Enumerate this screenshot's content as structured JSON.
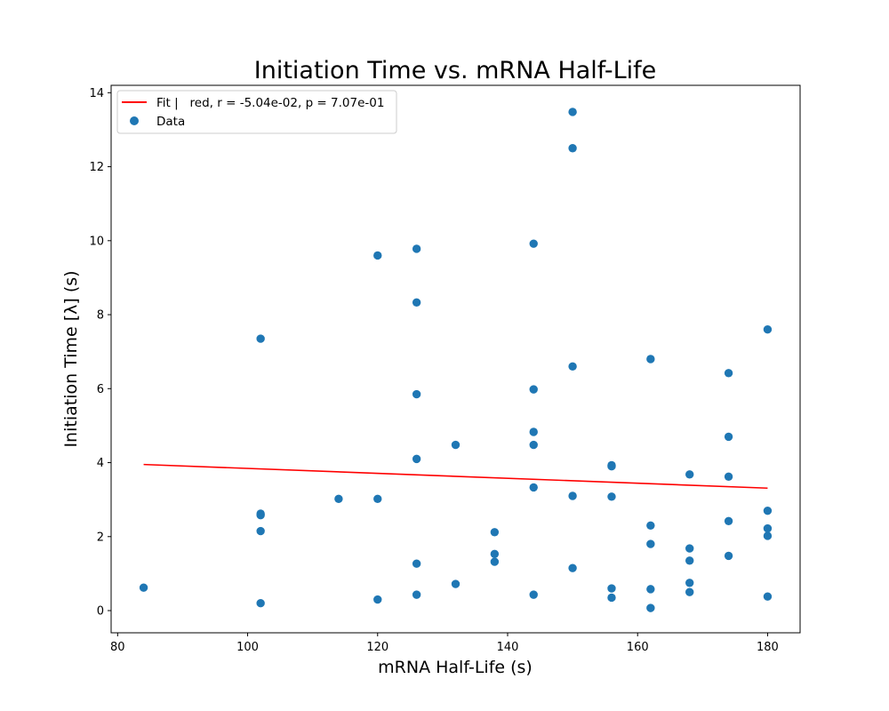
{
  "chart_data": {
    "type": "scatter",
    "title": "Initiation Time vs. mRNA Half-Life",
    "xlabel": "mRNA Half-Life (s)",
    "ylabel": "Initiation Time [λ] (s)",
    "xlim": [
      79,
      185
    ],
    "ylim": [
      -0.6,
      14.2
    ],
    "xticks": [
      80,
      100,
      120,
      140,
      160,
      180
    ],
    "yticks": [
      0,
      2,
      4,
      6,
      8,
      10,
      12,
      14
    ],
    "grid": false,
    "legend_position": "top-left",
    "series": [
      {
        "name": "Data",
        "kind": "scatter",
        "color": "#1f77b4",
        "x": [
          84,
          102,
          102,
          102,
          102,
          102,
          114,
          120,
          120,
          120,
          126,
          126,
          126,
          126,
          126,
          126,
          132,
          132,
          138,
          138,
          138,
          144,
          144,
          144,
          144,
          144,
          144,
          150,
          150,
          150,
          150,
          150,
          156,
          156,
          156,
          156,
          156,
          162,
          162,
          162,
          162,
          162,
          168,
          168,
          168,
          168,
          168,
          174,
          174,
          174,
          174,
          174,
          180,
          180,
          180,
          180,
          180
        ],
        "y": [
          0.62,
          0.2,
          2.15,
          2.58,
          2.62,
          7.35,
          3.02,
          0.3,
          3.02,
          9.6,
          0.43,
          1.27,
          4.1,
          5.85,
          8.33,
          9.78,
          0.72,
          4.48,
          1.32,
          1.53,
          2.12,
          0.43,
          3.33,
          4.48,
          4.83,
          5.98,
          9.92,
          1.15,
          3.1,
          6.6,
          12.5,
          13.48,
          0.35,
          0.6,
          3.08,
          3.9,
          3.93,
          0.07,
          0.58,
          1.8,
          2.3,
          6.8,
          0.5,
          0.75,
          1.35,
          1.68,
          3.68,
          1.48,
          2.42,
          3.62,
          4.7,
          6.42,
          0.38,
          2.02,
          2.22,
          2.7,
          7.6
        ]
      },
      {
        "name": "Fit |   red, r = -5.04e-02, p = 7.07e-01",
        "kind": "line",
        "color": "#ff0000",
        "x": [
          84,
          180
        ],
        "y": [
          3.95,
          3.31
        ]
      }
    ]
  }
}
